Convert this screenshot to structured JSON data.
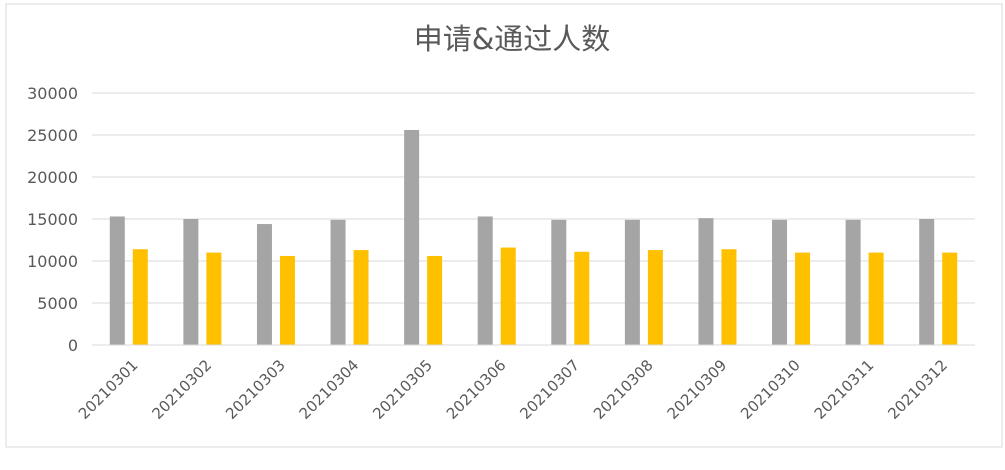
{
  "chart_data": {
    "type": "bar",
    "title": "申请&通过人数",
    "categories": [
      "20210301",
      "20210302",
      "20210303",
      "20210304",
      "20210305",
      "20210306",
      "20210307",
      "20210308",
      "20210309",
      "20210310",
      "20210311",
      "20210312"
    ],
    "series": [
      {
        "values": [
          15300,
          15000,
          14400,
          14900,
          25600,
          15300,
          14900,
          14900,
          15100,
          14900,
          14900,
          15000
        ],
        "color": "#a5a5a5"
      },
      {
        "values": [
          11400,
          11000,
          10600,
          11300,
          10600,
          11600,
          11100,
          11300,
          11400,
          11000,
          11000,
          11000
        ],
        "color": "#ffc000"
      }
    ],
    "ylim": [
      0,
      30000
    ],
    "yticks": [
      0,
      5000,
      10000,
      15000,
      20000,
      25000,
      30000
    ],
    "grid": true,
    "colors": {
      "gridline": "#d9d9d9",
      "axis_text": "#595959",
      "title_text": "#595959",
      "frame": "#d9d9d9"
    }
  }
}
